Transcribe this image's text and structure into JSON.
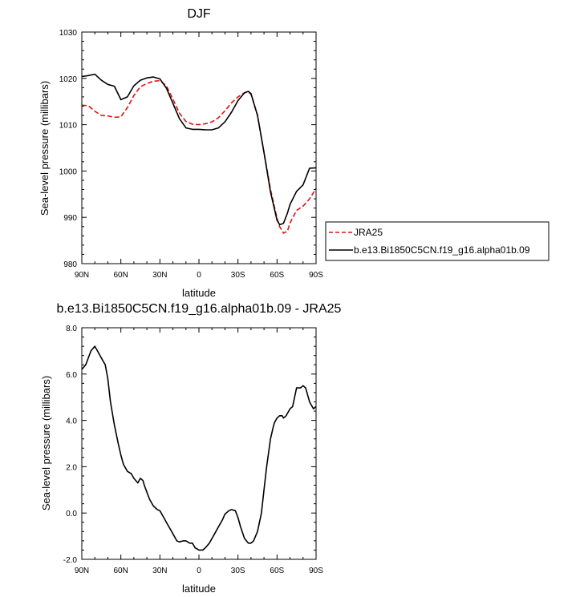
{
  "charts": [
    {
      "type": "line",
      "title": "DJF",
      "xlabel": "latitude",
      "ylabel": "Sea-level pressure (millibars)",
      "xlim": [
        90,
        -90
      ],
      "ylim": [
        980,
        1030
      ],
      "xticks": [
        {
          "value": 90,
          "label": "90N"
        },
        {
          "value": 60,
          "label": "60N"
        },
        {
          "value": 30,
          "label": "30N"
        },
        {
          "value": 0,
          "label": "0"
        },
        {
          "value": -30,
          "label": "30S"
        },
        {
          "value": -60,
          "label": "60S"
        },
        {
          "value": -90,
          "label": "90S"
        }
      ],
      "yticks": [
        {
          "value": 980,
          "label": "980"
        },
        {
          "value": 990,
          "label": "990"
        },
        {
          "value": 1000,
          "label": "1000"
        },
        {
          "value": 1010,
          "label": "1010"
        },
        {
          "value": 1020,
          "label": "1020"
        },
        {
          "value": 1030,
          "label": "1030"
        }
      ],
      "legend_position": "right",
      "series": [
        {
          "name": "JRA25",
          "color": "#e01010",
          "dash": "dashed",
          "x": [
            90,
            85,
            80,
            75,
            70,
            65,
            60,
            55,
            50,
            45,
            40,
            35,
            30,
            25,
            20,
            15,
            10,
            5,
            0,
            -5,
            -10,
            -15,
            -20,
            -25,
            -30,
            -35,
            -38,
            -40,
            -45,
            -50,
            -55,
            -60,
            -62,
            -65,
            -68,
            -70,
            -75,
            -80,
            -85,
            -90
          ],
          "y": [
            1014.2,
            1014.1,
            1012.9,
            1012.0,
            1011.9,
            1011.6,
            1011.7,
            1013.7,
            1016.3,
            1018.2,
            1018.9,
            1019.4,
            1019.5,
            1018.4,
            1015.5,
            1012.5,
            1010.7,
            1010.1,
            1010.0,
            1010.2,
            1010.6,
            1011.5,
            1013.0,
            1014.7,
            1016.0,
            1016.9,
            1017.0,
            1016.6,
            1012.0,
            1004.0,
            996.0,
            989.8,
            988.0,
            986.6,
            987.0,
            988.8,
            991.5,
            992.4,
            994.0,
            996.2
          ]
        },
        {
          "name": "b.e13.Bi1850C5CN.f19_g16.alpha01b.09",
          "color": "#000000",
          "dash": "solid",
          "x": [
            90,
            85,
            80,
            75,
            70,
            65,
            60,
            55,
            50,
            45,
            40,
            35,
            30,
            25,
            20,
            15,
            10,
            5,
            0,
            -5,
            -10,
            -15,
            -20,
            -25,
            -30,
            -35,
            -38,
            -40,
            -45,
            -50,
            -55,
            -60,
            -62,
            -65,
            -68,
            -70,
            -75,
            -80,
            -85,
            -90
          ],
          "y": [
            1020.4,
            1020.6,
            1020.9,
            1019.6,
            1018.7,
            1018.3,
            1015.4,
            1016.0,
            1018.4,
            1019.6,
            1020.1,
            1020.3,
            1019.9,
            1017.9,
            1014.6,
            1011.3,
            1009.3,
            1009.0,
            1009.0,
            1008.9,
            1008.9,
            1009.3,
            1010.6,
            1012.7,
            1015.2,
            1016.9,
            1017.2,
            1016.7,
            1012.0,
            1004.0,
            995.5,
            989.4,
            988.4,
            988.7,
            990.9,
            992.8,
            995.6,
            997.0,
            1000.6,
            1000.7
          ]
        }
      ]
    },
    {
      "type": "line",
      "title": "b.e13.Bi1850C5CN.f19_g16.alpha01b.09 - JRA25",
      "xlabel": "latitude",
      "ylabel": "Sea-level pressure (millibars)",
      "xlim": [
        90,
        -90
      ],
      "ylim": [
        -2.0,
        8.0
      ],
      "xticks": [
        {
          "value": 90,
          "label": "90N"
        },
        {
          "value": 60,
          "label": "60N"
        },
        {
          "value": 30,
          "label": "30N"
        },
        {
          "value": 0,
          "label": "0"
        },
        {
          "value": -30,
          "label": "30S"
        },
        {
          "value": -60,
          "label": "60S"
        },
        {
          "value": -90,
          "label": "90S"
        }
      ],
      "yticks": [
        {
          "value": -2.0,
          "label": "-2.0"
        },
        {
          "value": 0.0,
          "label": "0.0"
        },
        {
          "value": 2.0,
          "label": "2.0"
        },
        {
          "value": 4.0,
          "label": "4.0"
        },
        {
          "value": 6.0,
          "label": "6.0"
        },
        {
          "value": 8.0,
          "label": "8.0"
        }
      ],
      "series": [
        {
          "name": "",
          "color": "#000000",
          "dash": "solid",
          "x": [
            90,
            87,
            85,
            83,
            80,
            78,
            75,
            72,
            70,
            68,
            65,
            62,
            60,
            58,
            55,
            52,
            50,
            47,
            45,
            43,
            42,
            40,
            38,
            35,
            32,
            30,
            28,
            25,
            22,
            20,
            17,
            15,
            12,
            10,
            7,
            5,
            3,
            0,
            -3,
            -5,
            -8,
            -10,
            -12,
            -15,
            -18,
            -20,
            -23,
            -25,
            -28,
            -30,
            -32,
            -35,
            -38,
            -40,
            -42,
            -45,
            -48,
            -50,
            -52,
            -55,
            -57,
            -58,
            -60,
            -62,
            -64,
            -65,
            -67,
            -68,
            -70,
            -72,
            -75,
            -78,
            -80,
            -82,
            -84,
            -85,
            -87,
            -88,
            -90
          ],
          "y": [
            6.2,
            6.4,
            6.7,
            7.0,
            7.2,
            7.0,
            6.7,
            6.4,
            5.8,
            4.8,
            3.8,
            3.0,
            2.5,
            2.1,
            1.8,
            1.7,
            1.5,
            1.3,
            1.5,
            1.4,
            1.2,
            0.9,
            0.6,
            0.3,
            0.15,
            0.1,
            -0.1,
            -0.4,
            -0.7,
            -0.9,
            -1.2,
            -1.25,
            -1.2,
            -1.2,
            -1.3,
            -1.3,
            -1.5,
            -1.6,
            -1.6,
            -1.5,
            -1.3,
            -1.1,
            -0.9,
            -0.6,
            -0.3,
            -0.05,
            0.1,
            0.15,
            0.1,
            -0.2,
            -0.6,
            -1.1,
            -1.3,
            -1.3,
            -1.2,
            -0.8,
            0.0,
            1.0,
            2.0,
            3.2,
            3.7,
            3.9,
            4.1,
            4.2,
            4.2,
            4.1,
            4.2,
            4.3,
            4.5,
            4.6,
            5.4,
            5.4,
            5.5,
            5.4,
            5.0,
            4.8,
            4.6,
            4.5,
            4.6
          ]
        }
      ]
    }
  ]
}
